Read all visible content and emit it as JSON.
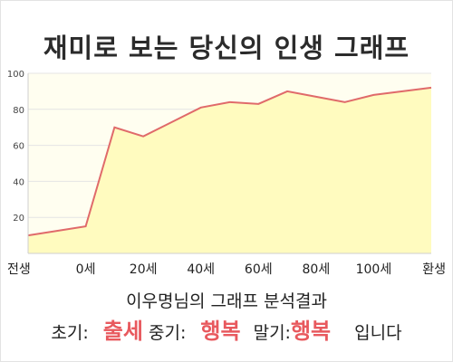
{
  "title": "재미로 보는 당신의 인생 그래프",
  "subtitle": "이우명님의 그래프 분석결과",
  "summary": {
    "early_label": "초기:",
    "early_value": "출세",
    "mid_label": "중기:",
    "mid_value": "행복",
    "late_label": "말기:",
    "late_value": "행복",
    "ending": "입니다"
  },
  "colors": {
    "line": "#e06a6a",
    "fill": "#fffbbf",
    "plot_bg": "#fffef0",
    "highlight": "#e8595e"
  },
  "chart_data": {
    "type": "area",
    "categories": [
      "전생",
      "0세",
      "20세",
      "40세",
      "60세",
      "80세",
      "100세",
      "환생"
    ],
    "x": [
      -20,
      0,
      10,
      20,
      30,
      40,
      50,
      60,
      70,
      80,
      90,
      100,
      120
    ],
    "y": [
      10,
      15,
      70,
      65,
      73,
      81,
      84,
      83,
      90,
      87,
      84,
      88,
      92
    ],
    "yticks": [
      20,
      40,
      60,
      80,
      100
    ],
    "ylim": [
      0,
      100
    ],
    "grid": "horizontal",
    "legend": "none"
  }
}
